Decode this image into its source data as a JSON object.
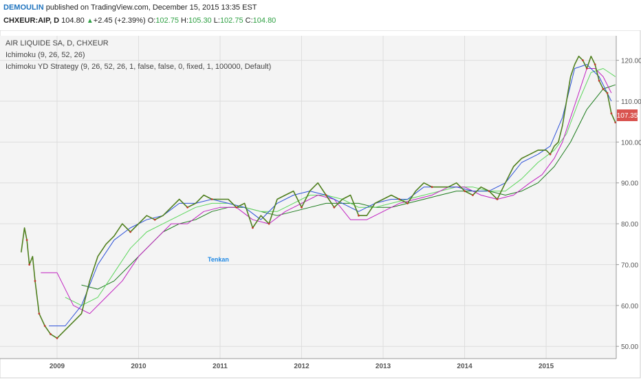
{
  "header": {
    "author": "DEMOULIN",
    "published_text": "published on TradingView.com, December 15, 2015 13:35 EST",
    "symbol": "CHXEUR:AIP, D",
    "last": "104.80",
    "change": "+2.45 (+2.39%)",
    "open_label": "O:",
    "open": "102.75",
    "high_label": "H:",
    "high": "105.30",
    "low_label": "L:",
    "low": "102.75",
    "close_label": "C:",
    "close": "104.80"
  },
  "legend": {
    "line1": "AIR LIQUIDE SA, D, CHXEUR",
    "line2": "Ichimoku (9, 26, 52, 26)",
    "line3": "Ichimoku YD Strategy (9, 26, 52, 26, 1, false, false, 0, fixed, 1, 100000, Default)"
  },
  "annotation": {
    "text": "Tenkan"
  },
  "price_badge": "107.35",
  "colors": {
    "price": "#4f7f1e",
    "kijun": "#c020c0",
    "cloud_a": "#5cd65c",
    "cloud_b": "#1a7a1a",
    "tenkan": "#2b50d8",
    "candle_down": "#c0392b",
    "badge": "#d9534f"
  },
  "chart_data": {
    "type": "line",
    "y_ticks": [
      "50.00",
      "60.00",
      "70.00",
      "80.00",
      "90.00",
      "100.00",
      "110.00",
      "120.00"
    ],
    "x_ticks": [
      "2009",
      "2010",
      "2011",
      "2012",
      "2013",
      "2014",
      "2015"
    ],
    "ylim": [
      47,
      126
    ],
    "xlim": [
      2008.3,
      2015.86
    ],
    "grid": true,
    "series": [
      {
        "key": "price",
        "x": [
          2008.56,
          2008.6,
          2008.63,
          2008.66,
          2008.7,
          2008.73,
          2008.78,
          2008.85,
          2008.92,
          2009.0,
          2009.1,
          2009.2,
          2009.3,
          2009.4,
          2009.5,
          2009.6,
          2009.7,
          2009.8,
          2009.9,
          2010.0,
          2010.1,
          2010.2,
          2010.3,
          2010.4,
          2010.5,
          2010.6,
          2010.7,
          2010.8,
          2010.9,
          2011.0,
          2011.1,
          2011.2,
          2011.3,
          2011.4,
          2011.5,
          2011.6,
          2011.7,
          2011.8,
          2011.9,
          2012.0,
          2012.1,
          2012.2,
          2012.3,
          2012.4,
          2012.5,
          2012.6,
          2012.7,
          2012.8,
          2012.9,
          2013.0,
          2013.1,
          2013.2,
          2013.3,
          2013.4,
          2013.5,
          2013.6,
          2013.7,
          2013.8,
          2013.9,
          2014.0,
          2014.1,
          2014.2,
          2014.3,
          2014.4,
          2014.5,
          2014.6,
          2014.7,
          2014.8,
          2014.9,
          2015.0,
          2015.05,
          2015.1,
          2015.15,
          2015.2,
          2015.25,
          2015.3,
          2015.35,
          2015.4,
          2015.45,
          2015.5,
          2015.55,
          2015.6,
          2015.65,
          2015.7,
          2015.75,
          2015.8,
          2015.85
        ],
        "y": [
          73,
          79,
          76,
          70,
          72,
          66,
          58,
          55,
          53,
          52,
          54,
          56,
          58,
          66,
          72,
          75,
          77,
          80,
          78,
          80,
          82,
          81,
          82,
          84,
          86,
          84,
          85,
          87,
          86,
          86,
          86,
          84,
          85,
          79,
          82,
          80,
          86,
          87,
          88,
          84,
          88,
          90,
          87,
          84,
          86,
          87,
          82,
          82,
          85,
          86,
          87,
          86,
          85,
          88,
          90,
          89,
          89,
          89,
          90,
          88,
          87,
          89,
          88,
          86,
          90,
          94,
          96,
          97,
          98,
          98,
          97,
          99,
          100,
          104,
          110,
          116,
          119,
          121,
          120,
          118,
          121,
          119,
          115,
          113,
          112,
          107,
          104.8
        ]
      },
      {
        "key": "tenkan",
        "x": [
          2008.9,
          2009.1,
          2009.3,
          2009.5,
          2009.7,
          2009.9,
          2010.1,
          2010.3,
          2010.5,
          2010.7,
          2010.9,
          2011.1,
          2011.3,
          2011.5,
          2011.7,
          2011.9,
          2012.1,
          2012.3,
          2012.5,
          2012.7,
          2012.9,
          2013.1,
          2013.3,
          2013.5,
          2013.7,
          2013.9,
          2014.1,
          2014.3,
          2014.5,
          2014.7,
          2014.9,
          2015.05,
          2015.2,
          2015.35,
          2015.5,
          2015.65,
          2015.8
        ],
        "y": [
          55,
          55,
          60,
          70,
          76,
          79,
          81,
          82,
          85,
          85,
          86,
          85,
          84,
          81,
          85,
          87,
          88,
          87,
          85,
          83,
          85,
          86,
          86,
          89,
          89,
          89,
          88,
          88,
          90,
          95,
          97,
          99,
          106,
          118,
          119,
          116,
          110
        ]
      },
      {
        "key": "kijun",
        "x": [
          2008.8,
          2009.0,
          2009.2,
          2009.4,
          2009.6,
          2009.8,
          2010.0,
          2010.2,
          2010.4,
          2010.6,
          2010.8,
          2011.0,
          2011.2,
          2011.4,
          2011.6,
          2011.8,
          2012.0,
          2012.2,
          2012.4,
          2012.6,
          2012.8,
          2013.0,
          2013.2,
          2013.4,
          2013.6,
          2013.8,
          2014.0,
          2014.2,
          2014.4,
          2014.6,
          2014.8,
          2014.95,
          2015.1,
          2015.2,
          2015.3,
          2015.4,
          2015.5,
          2015.6,
          2015.7,
          2015.8
        ],
        "y": [
          68,
          68,
          60,
          58,
          62,
          66,
          72,
          76,
          80,
          80,
          83,
          84,
          84,
          81,
          80,
          83,
          85,
          87,
          86,
          81,
          81,
          83,
          85,
          86,
          87,
          89,
          89,
          87,
          86,
          87,
          90,
          92,
          96,
          100,
          106,
          112,
          118,
          118,
          116,
          112
        ]
      },
      {
        "key": "cloud_a",
        "x": [
          2009.1,
          2009.3,
          2009.5,
          2009.7,
          2009.9,
          2010.1,
          2010.3,
          2010.5,
          2010.7,
          2010.9,
          2011.1,
          2011.3,
          2011.5,
          2011.7,
          2011.9,
          2012.1,
          2012.3,
          2012.5,
          2012.7,
          2012.9,
          2013.1,
          2013.3,
          2013.5,
          2013.7,
          2013.9,
          2014.1,
          2014.3,
          2014.5,
          2014.7,
          2014.9,
          2015.1,
          2015.25,
          2015.4,
          2015.55,
          2015.7,
          2015.85
        ],
        "y": [
          62,
          60,
          62,
          68,
          74,
          78,
          80,
          82,
          84,
          85,
          85,
          84,
          83,
          83,
          85,
          87,
          87,
          86,
          84,
          84,
          85,
          86,
          87,
          88,
          89,
          89,
          88,
          88,
          91,
          95,
          98,
          102,
          110,
          117,
          118,
          116
        ]
      },
      {
        "key": "cloud_b",
        "x": [
          2009.3,
          2009.5,
          2009.7,
          2009.9,
          2010.1,
          2010.3,
          2010.5,
          2010.7,
          2010.9,
          2011.1,
          2011.3,
          2011.5,
          2011.7,
          2011.9,
          2012.1,
          2012.3,
          2012.5,
          2012.7,
          2012.9,
          2013.1,
          2013.3,
          2013.5,
          2013.7,
          2013.9,
          2014.1,
          2014.3,
          2014.5,
          2014.7,
          2014.9,
          2015.1,
          2015.3,
          2015.5,
          2015.7,
          2015.85
        ],
        "y": [
          65,
          64,
          66,
          70,
          74,
          78,
          80,
          81,
          83,
          84,
          84,
          83,
          82,
          83,
          84,
          85,
          85,
          85,
          84,
          84,
          85,
          86,
          87,
          88,
          88,
          88,
          87,
          88,
          90,
          94,
          100,
          108,
          113,
          114
        ]
      }
    ]
  }
}
